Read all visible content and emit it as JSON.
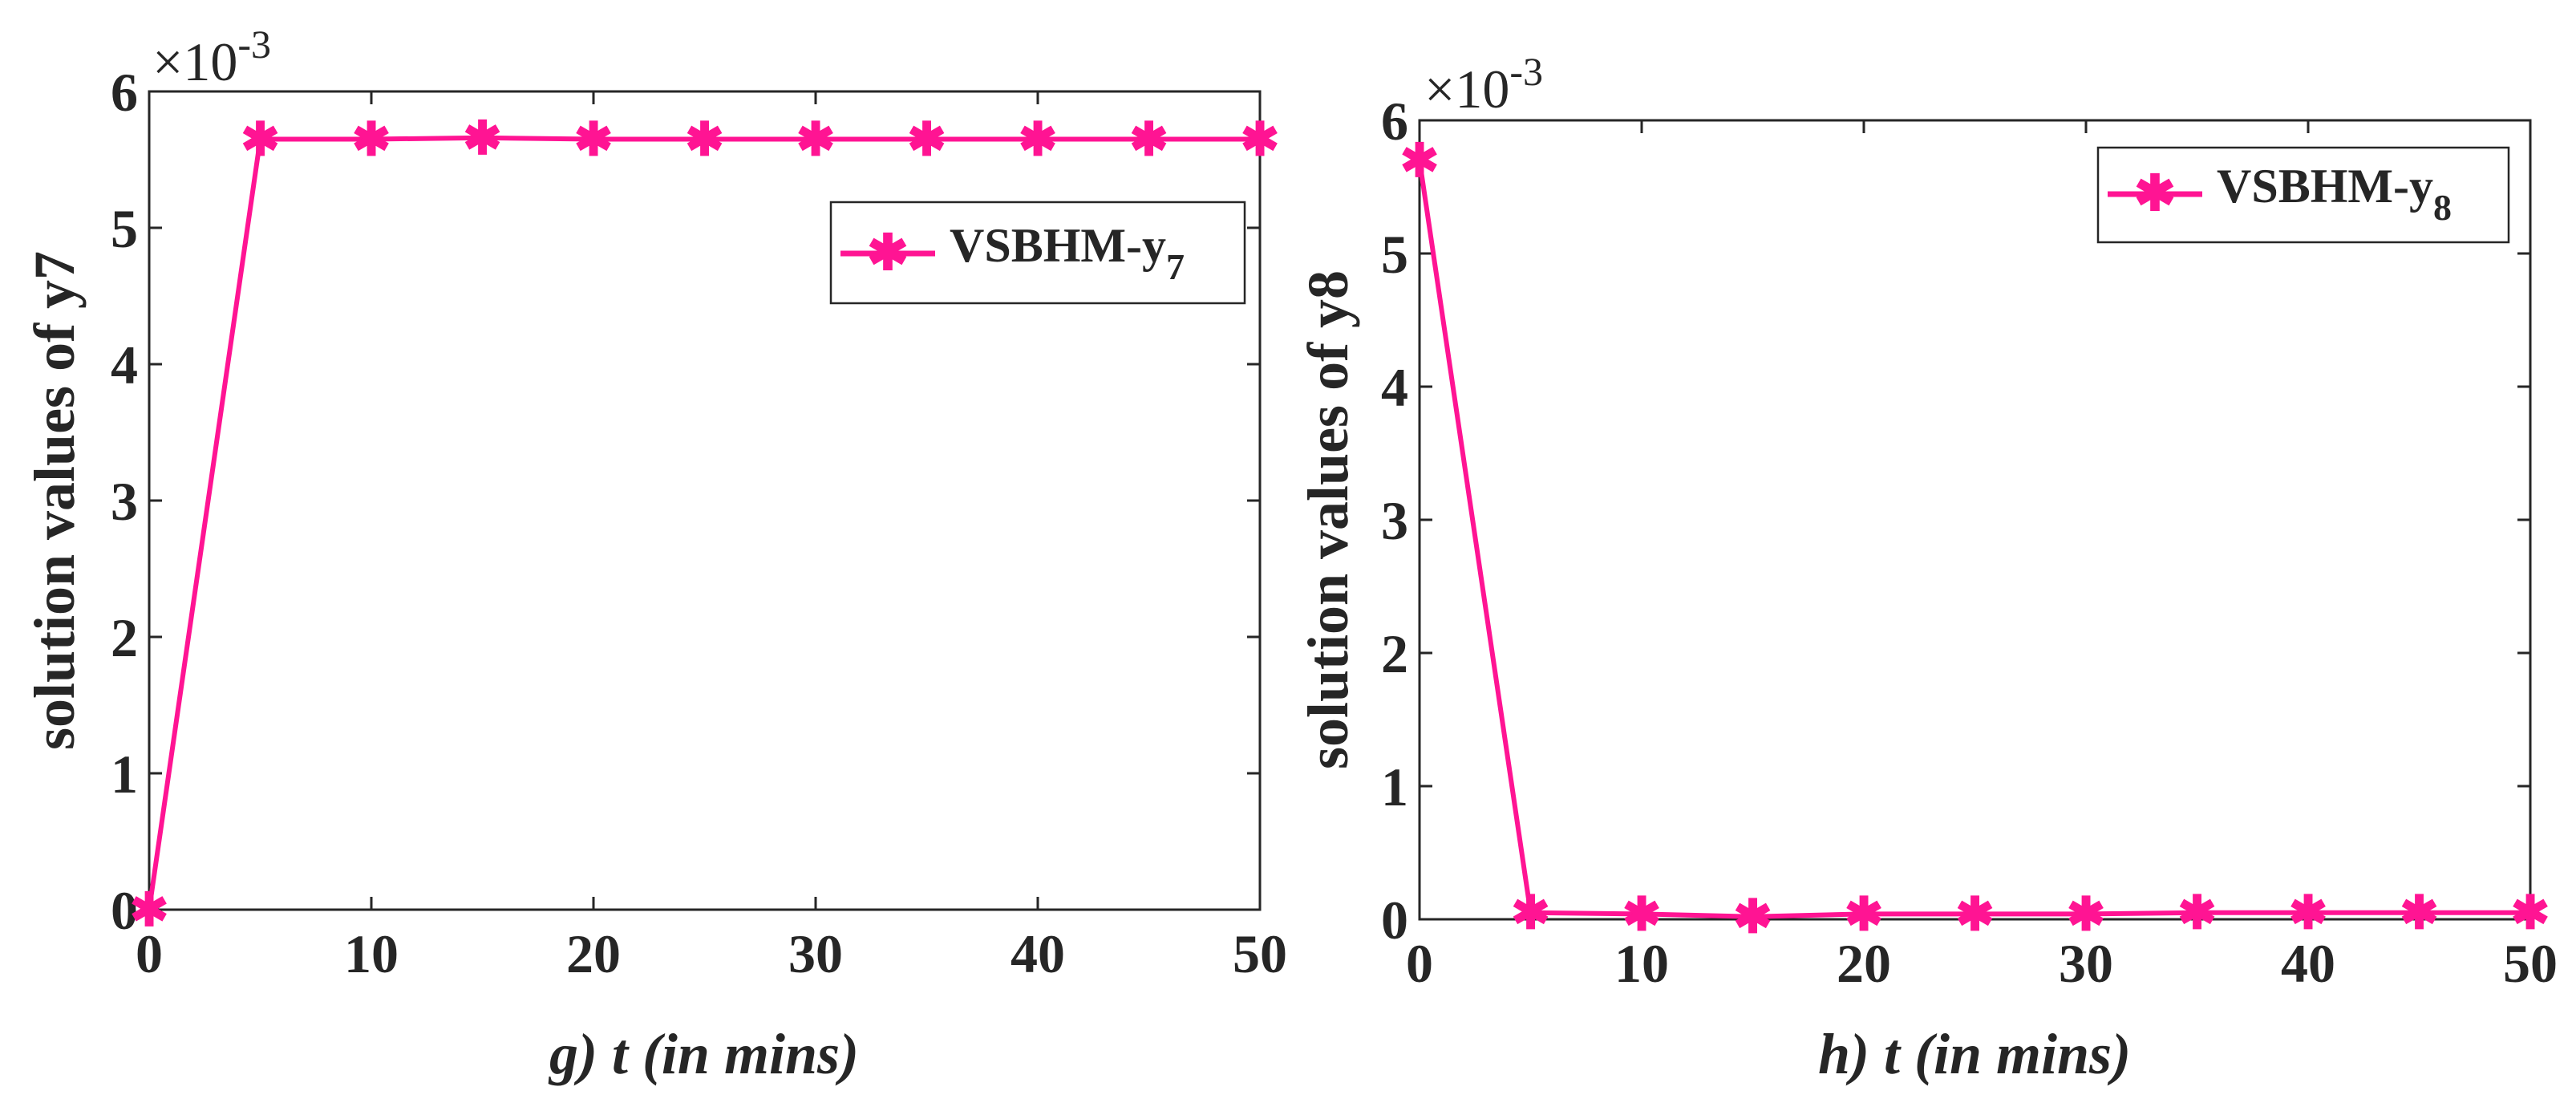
{
  "colors": {
    "series": "#ff1493",
    "axis": "#262626",
    "background": "#ffffff"
  },
  "chart_data": [
    {
      "type": "line",
      "panel": "g",
      "xlabel": "g) t (in mins)",
      "ylabel": "solution values of y7",
      "exponent_label": "×10",
      "exponent_power": "-3",
      "x": [
        0,
        5,
        10,
        15,
        20,
        25,
        30,
        35,
        40,
        45,
        50
      ],
      "xlim": [
        0,
        50
      ],
      "ylim": [
        0,
        6
      ],
      "xticks": [
        "0",
        "10",
        "20",
        "30",
        "40",
        "50"
      ],
      "xtick_values": [
        0,
        10,
        20,
        30,
        40,
        50
      ],
      "yticks": [
        "0",
        "1",
        "2",
        "3",
        "4",
        "5",
        "6"
      ],
      "ytick_values": [
        0,
        1,
        2,
        3,
        4,
        5,
        6
      ],
      "legend_position": "top-right",
      "series": [
        {
          "name": "VSBHM-y",
          "name_sub": "7",
          "values": [
            0,
            5.65,
            5.65,
            5.66,
            5.65,
            5.65,
            5.65,
            5.65,
            5.65,
            5.65,
            5.65
          ]
        }
      ]
    },
    {
      "type": "line",
      "panel": "h",
      "xlabel": "h) t (in mins)",
      "ylabel": "solution values of y8",
      "exponent_label": "×10",
      "exponent_power": "-3",
      "x": [
        0,
        5,
        10,
        15,
        20,
        25,
        30,
        35,
        40,
        45,
        50
      ],
      "xlim": [
        0,
        50
      ],
      "ylim": [
        0,
        6
      ],
      "xticks": [
        "0",
        "10",
        "20",
        "30",
        "40",
        "50"
      ],
      "xtick_values": [
        0,
        10,
        20,
        30,
        40,
        50
      ],
      "yticks": [
        "0",
        "1",
        "2",
        "3",
        "4",
        "5",
        "6"
      ],
      "ytick_values": [
        0,
        1,
        2,
        3,
        4,
        5,
        6
      ],
      "legend_position": "top-right",
      "series": [
        {
          "name": "VSBHM-y",
          "name_sub": "8",
          "values": [
            5.7,
            0.05,
            0.04,
            0.02,
            0.04,
            0.04,
            0.04,
            0.05,
            0.05,
            0.05,
            0.05
          ]
        }
      ]
    }
  ]
}
